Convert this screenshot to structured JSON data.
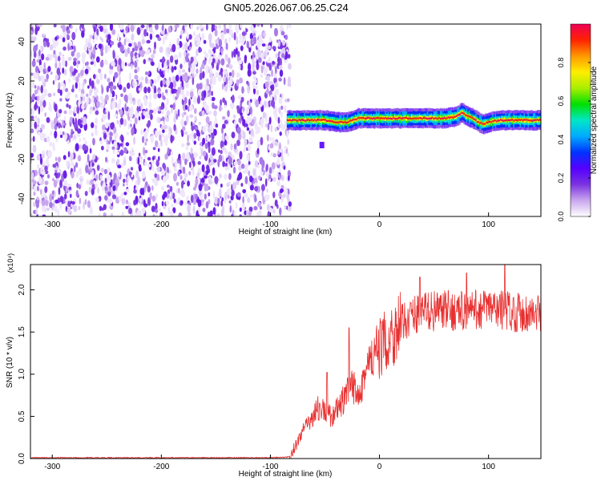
{
  "title": "GN05.2026.067.06.25.C24",
  "chart_data": [
    {
      "type": "heatmap",
      "xlabel": "Height of straight line (km)",
      "ylabel": "Frequency (Hz)",
      "xlim": [
        -320,
        148
      ],
      "ylim": [
        -49,
        49
      ],
      "xticks": [
        -300,
        -200,
        -100,
        0,
        100
      ],
      "yticks": [
        -40,
        -20,
        0,
        20,
        40
      ],
      "noise_region_x": [
        -320,
        -82
      ],
      "ridge": {
        "x": [
          -85,
          -70,
          -50,
          -40,
          -30,
          -20,
          -10,
          0,
          20,
          40,
          60,
          70,
          75,
          80,
          85,
          90,
          95,
          100,
          110,
          120,
          148
        ],
        "freq": [
          0,
          0,
          0,
          -1,
          -1,
          1,
          1,
          1,
          1,
          1,
          1,
          2,
          4,
          2,
          1,
          -1,
          -2,
          -1,
          0,
          0,
          0
        ]
      },
      "colorbar": {
        "label": "Normalized spectral amplitude",
        "ticks": [
          0.0,
          0.2,
          0.4,
          0.6,
          0.8
        ],
        "range": [
          0,
          1
        ],
        "colors": [
          "#ffffff",
          "#c9a6ee",
          "#7a33e0",
          "#5500ff",
          "#0033ff",
          "#00aaff",
          "#00e6c8",
          "#00e000",
          "#aaee00",
          "#ffee00",
          "#ff9900",
          "#ff2200",
          "#ee0055"
        ]
      }
    },
    {
      "type": "line",
      "xlabel": "Height of straight line (km)",
      "ylabel": "SNR (10 * v/v)",
      "y_multiplier": "(x10⁴)",
      "xlim": [
        -320,
        148
      ],
      "ylim": [
        0,
        2.3
      ],
      "xticks": [
        -300,
        -200,
        -100,
        0,
        100
      ],
      "yticks": [
        0.0,
        0.5,
        1.0,
        1.5,
        2.0
      ],
      "color": "#e83030",
      "series": [
        {
          "x": [
            -320,
            -200,
            -100,
            -82,
            -75,
            -70,
            -65,
            -60,
            -55,
            -50,
            -45,
            -40,
            -35,
            -30,
            -25,
            -20,
            -15,
            -10,
            -5,
            0,
            10,
            20,
            30,
            40,
            60,
            80,
            100,
            120,
            148
          ],
          "values": [
            0.01,
            0.01,
            0.01,
            0.02,
            0.2,
            0.35,
            0.4,
            0.55,
            0.6,
            0.55,
            0.5,
            0.55,
            0.65,
            0.75,
            0.85,
            0.8,
            0.95,
            1.1,
            1.2,
            1.3,
            1.45,
            1.6,
            1.7,
            1.75,
            1.75,
            1.75,
            1.78,
            1.75,
            1.7
          ]
        }
      ],
      "spikes": [
        {
          "x": -48,
          "value": 1.02
        },
        {
          "x": -28,
          "value": 1.55
        },
        {
          "x": 37,
          "value": 2.15
        },
        {
          "x": 80,
          "value": 2.2
        },
        {
          "x": 115,
          "value": 2.3
        }
      ]
    }
  ]
}
